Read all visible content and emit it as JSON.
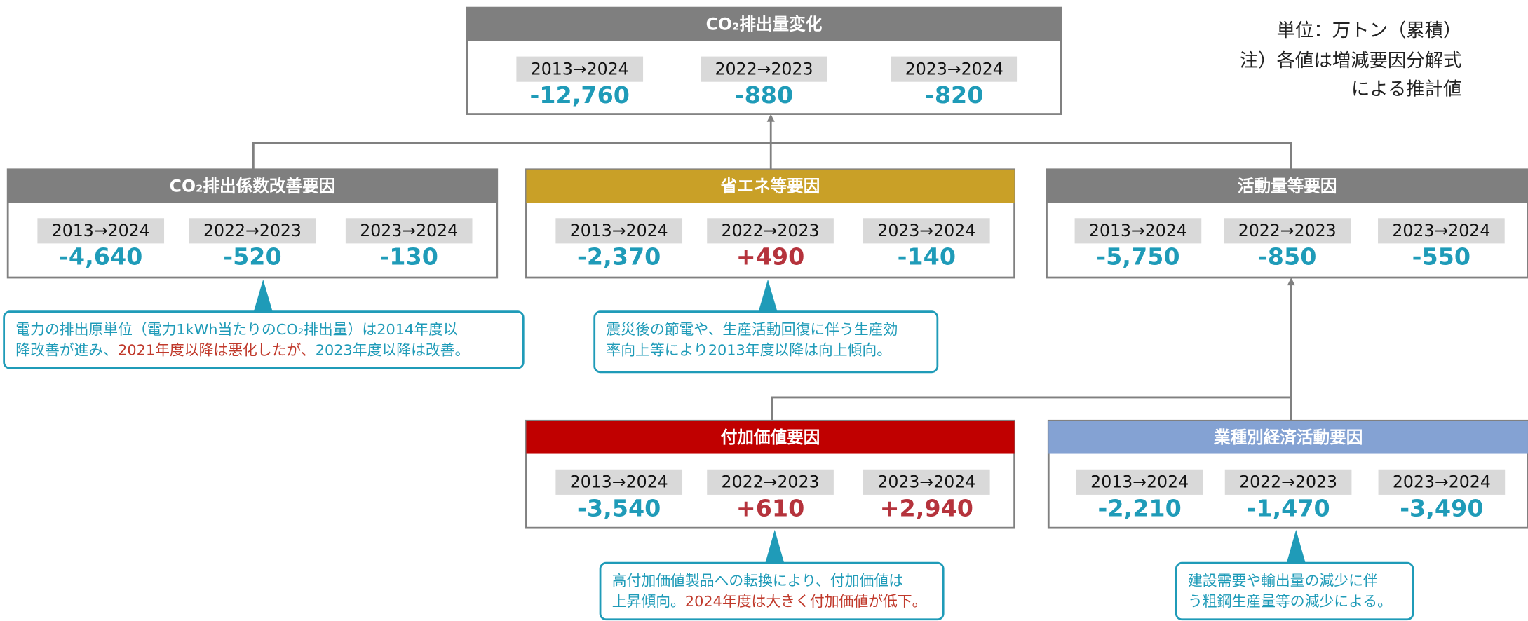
{
  "note": {
    "unit": "単位：万トン（累積）",
    "lines": [
      "注）各値は増減要因分解式",
      "による推計値"
    ]
  },
  "boxes": [
    {
      "title": "CO₂排出量変化",
      "header_color": "#7f7f7f",
      "periods": [
        "2013→2024",
        "2022→2023",
        "2023→2024"
      ],
      "values": [
        "-12,760",
        "-880",
        "-820"
      ]
    },
    {
      "title": "CO₂排出係数改善要因",
      "header_color": "#7f7f7f",
      "periods": [
        "2013→2024",
        "2022→2023",
        "2023→2024"
      ],
      "values": [
        "-4,640",
        "-520",
        "-130"
      ]
    },
    {
      "title": "省エネ等要因",
      "header_color": "#c9a027",
      "periods": [
        "2013→2024",
        "2022→2023",
        "2023→2024"
      ],
      "values": [
        "-2,370",
        "+490",
        "-140"
      ]
    },
    {
      "title": "活動量等要因",
      "header_color": "#7f7f7f",
      "periods": [
        "2013→2024",
        "2022→2023",
        "2023→2024"
      ],
      "values": [
        "-5,750",
        "-850",
        "-550"
      ]
    },
    {
      "title": "付加価値要因",
      "header_color": "#c00000",
      "periods": [
        "2013→2024",
        "2022→2023",
        "2023→2024"
      ],
      "values": [
        "-3,540",
        "+610",
        "+2,940"
      ]
    },
    {
      "title": "業種別経済活動要因",
      "header_color": "#84a2d3",
      "periods": [
        "2013→2024",
        "2022→2023",
        "2023→2024"
      ],
      "values": [
        "-2,210",
        "-1,470",
        "-3,490"
      ]
    }
  ],
  "callouts": [
    {
      "lines": [
        [
          {
            "text": "電力の排出原単位（電力1kWh当たりのCO₂排出量）は2014年度以"
          }
        ],
        [
          {
            "text": "降改善が進み、"
          },
          {
            "text": "2021年度以降は悪化したが、",
            "color": "#c0392b"
          },
          {
            "text": "2023年度以降は改善。"
          }
        ]
      ]
    },
    {
      "lines": [
        [
          {
            "text": "震災後の節電や、生産活動回復に伴う生産効"
          }
        ],
        [
          {
            "text": "率向上等により2013年度以降は向上傾向。"
          }
        ]
      ]
    },
    {
      "lines": [
        [
          {
            "text": "高付加価値製品への転換により、付加価値は"
          }
        ],
        [
          {
            "text": "上昇傾向。"
          },
          {
            "text": "2024年度は大きく付加価値が低下。",
            "color": "#c0392b"
          }
        ]
      ]
    },
    {
      "lines": [
        [
          {
            "text": "建設需要や輸出量の減少に伴"
          }
        ],
        [
          {
            "text": "う粗鋼生産量等の減少による。"
          }
        ]
      ]
    }
  ]
}
